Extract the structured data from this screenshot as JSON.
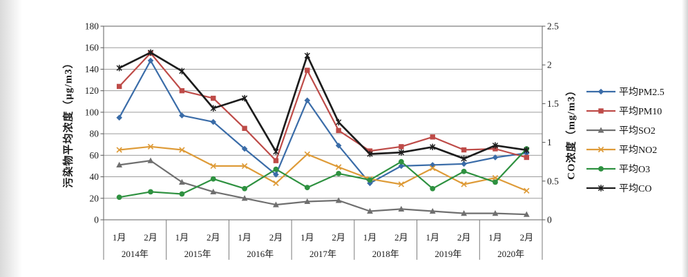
{
  "chart_data": {
    "type": "line",
    "title": "",
    "left_axis": {
      "title": "污染物平均浓度（μg/m3）",
      "min": 0,
      "max": 180,
      "tick_step": 20
    },
    "right_axis": {
      "title": "CO浓度（mg/m3）",
      "min": 0,
      "max": 2.5,
      "tick_step": 0.5
    },
    "grid": true,
    "legend_position": "right",
    "year_groups": [
      {
        "year": "2014年",
        "months": [
          "1月",
          "2月"
        ]
      },
      {
        "year": "2015年",
        "months": [
          "1月",
          "2月"
        ]
      },
      {
        "year": "2016年",
        "months": [
          "1月",
          "2月"
        ]
      },
      {
        "year": "2017年",
        "months": [
          "1月",
          "2月"
        ]
      },
      {
        "year": "2018年",
        "months": [
          "1月",
          "2月"
        ]
      },
      {
        "year": "2019年",
        "months": [
          "1月",
          "2月"
        ]
      },
      {
        "year": "2020年",
        "months": [
          "1月",
          "2月"
        ]
      }
    ],
    "series": [
      {
        "key": "pm25",
        "name": "平均PM2.5",
        "axis": "left",
        "color": "#3A6CA8",
        "marker": "diamond",
        "values": [
          95,
          148,
          97,
          91,
          66,
          42,
          111,
          69,
          34,
          50,
          51,
          52,
          58,
          62
        ]
      },
      {
        "key": "pm10",
        "name": "平均PM10",
        "axis": "left",
        "color": "#BE4B48",
        "marker": "square",
        "values": [
          124,
          155,
          120,
          113,
          85,
          55,
          139,
          83,
          64,
          68,
          77,
          65,
          66,
          58
        ]
      },
      {
        "key": "so2",
        "name": "平均SO2",
        "axis": "left",
        "color": "#6F6F6F",
        "marker": "triangle",
        "values": [
          51,
          55,
          35,
          26,
          20,
          14,
          17,
          18,
          8,
          10,
          8,
          6,
          6,
          5
        ]
      },
      {
        "key": "no2",
        "name": "平均NO2",
        "axis": "left",
        "color": "#DE9B38",
        "marker": "x",
        "values": [
          65,
          68,
          65,
          50,
          50,
          34,
          61,
          49,
          38,
          33,
          48,
          33,
          39,
          27
        ]
      },
      {
        "key": "o3",
        "name": "平均O3",
        "axis": "left",
        "color": "#2E9140",
        "marker": "circle",
        "values": [
          21,
          26,
          24,
          38,
          29,
          47,
          30,
          43,
          37,
          54,
          29,
          45,
          35,
          66
        ]
      },
      {
        "key": "co",
        "name": "平均CO",
        "axis": "right",
        "color": "#1C1C1C",
        "marker": "star",
        "values": [
          1.96,
          2.16,
          1.92,
          1.44,
          1.57,
          0.88,
          2.12,
          1.26,
          0.85,
          0.87,
          0.94,
          0.79,
          0.96,
          0.9
        ]
      }
    ]
  }
}
